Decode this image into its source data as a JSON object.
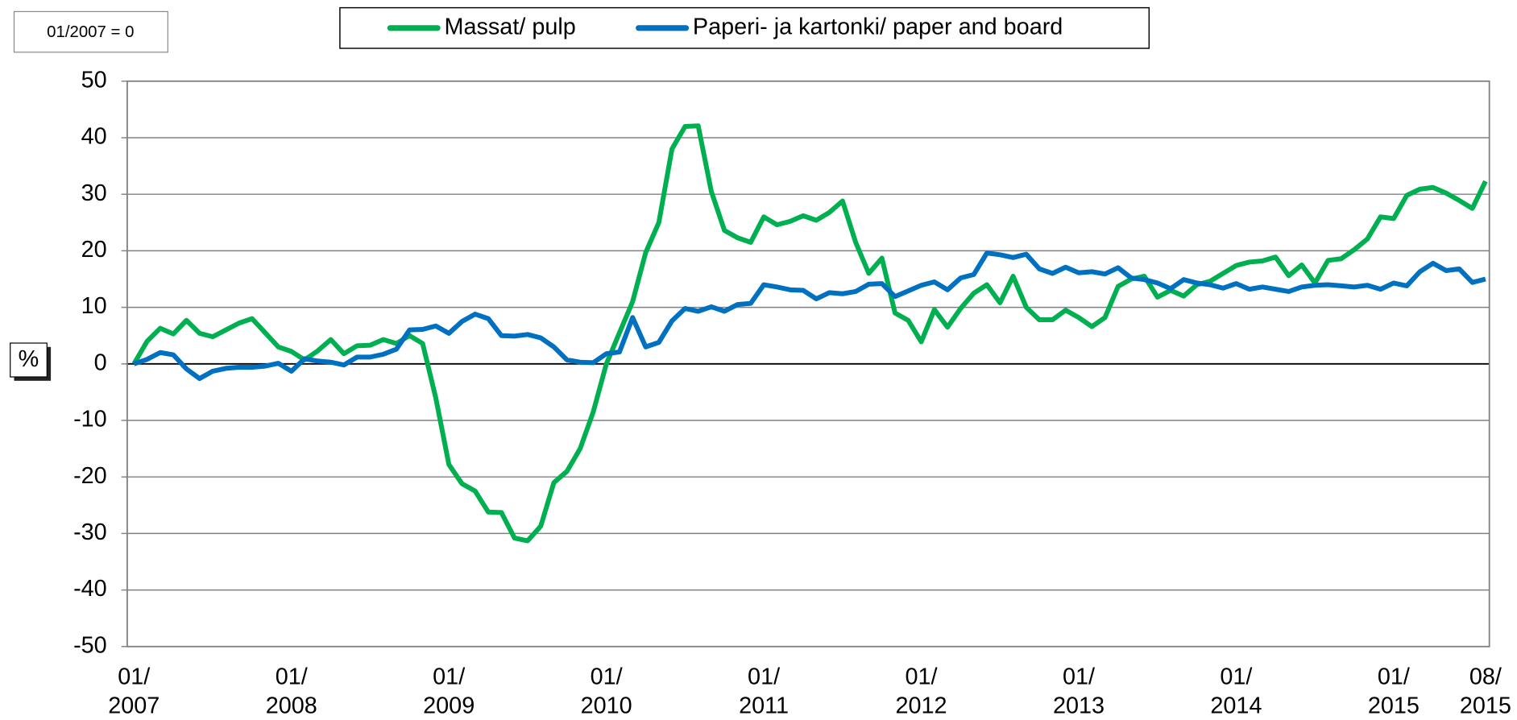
{
  "chart_data": {
    "type": "line",
    "annotation": "01/2007 = 0",
    "ylabel": "%",
    "categories": [
      "01/\n2007",
      null,
      null,
      null,
      null,
      null,
      null,
      null,
      null,
      null,
      null,
      null,
      "01/\n2008",
      null,
      null,
      null,
      null,
      null,
      null,
      null,
      null,
      null,
      null,
      null,
      "01/\n2009",
      null,
      null,
      null,
      null,
      null,
      null,
      null,
      null,
      null,
      null,
      null,
      "01/\n2010",
      null,
      null,
      null,
      null,
      null,
      null,
      null,
      null,
      null,
      null,
      null,
      "01/\n2011",
      null,
      null,
      null,
      null,
      null,
      null,
      null,
      null,
      null,
      null,
      null,
      "01/\n2012",
      null,
      null,
      null,
      null,
      null,
      null,
      null,
      null,
      null,
      null,
      null,
      "01/\n2013",
      null,
      null,
      null,
      null,
      null,
      null,
      null,
      null,
      null,
      null,
      null,
      "01/\n2014",
      null,
      null,
      null,
      null,
      null,
      null,
      null,
      null,
      null,
      null,
      null,
      "01/\n2015",
      null,
      null,
      null,
      null,
      null,
      null,
      "08/\n2015"
    ],
    "series": [
      {
        "name": "Massat/ pulp",
        "color": "#00b050",
        "values": [
          0,
          4,
          6.3,
          5.3,
          7.7,
          5.4,
          4.8,
          6,
          7.2,
          8,
          5.5,
          3,
          2.2,
          0.7,
          2.3,
          4.3,
          1.8,
          3.2,
          3.3,
          4.3,
          3.6,
          5,
          3.6,
          -6,
          -17.8,
          -21.2,
          -22.5,
          -26.2,
          -26.3,
          -30.8,
          -31.3,
          -28.7,
          -21,
          -19,
          -15,
          -8.5,
          0,
          5.5,
          11,
          19.7,
          25,
          38,
          42,
          42.1,
          30.5,
          23.6,
          22.3,
          21.5,
          26,
          24.6,
          25.2,
          26.2,
          25.4,
          26.8,
          28.8,
          21.5,
          16,
          18.7,
          9,
          7.7,
          3.9,
          9.6,
          6.5,
          9.8,
          12.5,
          14,
          10.8,
          15.5,
          10,
          7.8,
          7.8,
          9.5,
          8.2,
          6.6,
          8.2,
          13.7,
          15,
          15.5,
          11.8,
          13,
          12,
          14,
          14.6,
          16,
          17.4,
          18,
          18.2,
          18.9,
          15.6,
          17.5,
          14.3,
          18.3,
          18.6,
          20.2,
          22.1,
          26,
          25.7,
          29.8,
          30.9,
          31.2,
          30.2,
          28.9,
          27.5,
          32.3
        ]
      },
      {
        "name": "Paperi- ja kartonki/ paper and board",
        "color": "#0070c0",
        "values": [
          0,
          0.8,
          2,
          1.6,
          -0.9,
          -2.6,
          -1.3,
          -0.8,
          -0.6,
          -0.6,
          -0.4,
          0.1,
          -1.3,
          0.9,
          0.5,
          0.3,
          -0.2,
          1.2,
          1.2,
          1.7,
          2.6,
          6,
          6.1,
          6.7,
          5.4,
          7.5,
          8.8,
          8,
          5,
          4.9,
          5.2,
          4.6,
          3,
          0.7,
          0.3,
          0.2,
          1.8,
          2.1,
          8.2,
          3,
          3.8,
          7.6,
          9.8,
          9.3,
          10.1,
          9.3,
          10.5,
          10.7,
          14,
          13.6,
          13.1,
          13,
          11.5,
          12.6,
          12.4,
          12.8,
          14.1,
          14.2,
          11.9,
          12.9,
          13.9,
          14.5,
          13.1,
          15.2,
          15.8,
          19.6,
          19.3,
          18.8,
          19.4,
          16.8,
          16,
          17.1,
          16.1,
          16.3,
          15.9,
          17,
          15.2,
          14.9,
          14.3,
          13.3,
          14.9,
          14.3,
          14,
          13.4,
          14.2,
          13.2,
          13.6,
          13.2,
          12.8,
          13.6,
          13.9,
          14,
          13.8,
          13.6,
          13.9,
          13.2,
          14.3,
          13.8,
          16.3,
          17.8,
          16.5,
          16.8,
          14.4,
          15
        ]
      }
    ],
    "ylim": [
      -50,
      50
    ],
    "yticks": [
      -50,
      -40,
      -30,
      -20,
      -10,
      0,
      10,
      20,
      30,
      40,
      50
    ],
    "grid": true
  }
}
